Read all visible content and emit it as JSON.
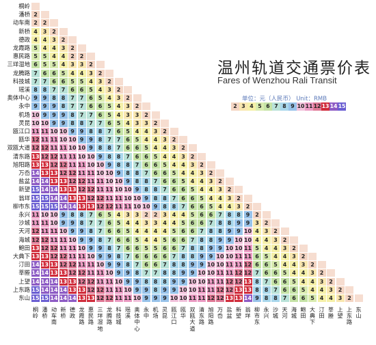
{
  "title_cn": "温州轨道交通票价表",
  "title_en": "Fares of Wenzhou Rali Transit",
  "unit_label": "单位：元（人民币） Unit：RMB",
  "stations": [
    "桐岭",
    "潘桥",
    "动车南",
    "新桥",
    "德政",
    "龙霞路",
    "惠民路",
    "三垟湿地",
    "龙腾路",
    "科技城",
    "瑶溪",
    "奥体中心",
    "永中",
    "机场",
    "灵昆",
    "瓯江口",
    "瓯华",
    "双瓯大道",
    "清东路",
    "旭阳路",
    "万岙",
    "盐盆",
    "新望",
    "翁垟",
    "柳市东",
    "永兴",
    "沙城",
    "天河",
    "海城",
    "鲍田",
    "大典下",
    "汀田",
    "莘塍",
    "上望",
    "上东路",
    "东山"
  ],
  "fares": [
    [],
    [
      2
    ],
    [
      2,
      2
    ],
    [
      4,
      3,
      2
    ],
    [
      4,
      4,
      3,
      2
    ],
    [
      5,
      4,
      4,
      3,
      2
    ],
    [
      5,
      5,
      4,
      4,
      2,
      2
    ],
    [
      6,
      5,
      5,
      4,
      3,
      3,
      2
    ],
    [
      7,
      6,
      6,
      5,
      4,
      4,
      3,
      2
    ],
    [
      7,
      7,
      6,
      6,
      5,
      5,
      4,
      3,
      2
    ],
    [
      8,
      8,
      7,
      7,
      6,
      6,
      5,
      4,
      3,
      2
    ],
    [
      9,
      9,
      8,
      8,
      7,
      7,
      6,
      5,
      4,
      3,
      2
    ],
    [
      9,
      9,
      9,
      8,
      7,
      7,
      6,
      6,
      5,
      4,
      3,
      2
    ],
    [
      10,
      9,
      9,
      9,
      8,
      7,
      7,
      6,
      5,
      4,
      3,
      3,
      2
    ],
    [
      10,
      10,
      9,
      9,
      8,
      8,
      7,
      7,
      6,
      5,
      4,
      3,
      3,
      2
    ],
    [
      11,
      11,
      10,
      10,
      9,
      9,
      8,
      8,
      7,
      6,
      5,
      4,
      4,
      3,
      2
    ],
    [
      12,
      11,
      11,
      10,
      10,
      9,
      9,
      8,
      7,
      7,
      6,
      5,
      4,
      4,
      3,
      2
    ],
    [
      12,
      12,
      11,
      11,
      10,
      10,
      9,
      8,
      8,
      7,
      6,
      6,
      5,
      4,
      4,
      3,
      2
    ],
    [
      13,
      12,
      12,
      11,
      11,
      10,
      10,
      9,
      8,
      8,
      7,
      6,
      6,
      5,
      4,
      4,
      3,
      2
    ],
    [
      13,
      13,
      12,
      12,
      11,
      11,
      10,
      10,
      9,
      8,
      8,
      7,
      6,
      6,
      5,
      4,
      4,
      3,
      2
    ],
    [
      14,
      13,
      13,
      12,
      12,
      11,
      11,
      10,
      10,
      9,
      8,
      8,
      7,
      6,
      6,
      5,
      4,
      4,
      3,
      2
    ],
    [
      14,
      14,
      13,
      13,
      12,
      12,
      11,
      11,
      10,
      10,
      9,
      8,
      8,
      7,
      6,
      6,
      5,
      4,
      4,
      3,
      2
    ],
    [
      15,
      14,
      14,
      13,
      13,
      12,
      12,
      11,
      11,
      10,
      10,
      9,
      8,
      8,
      7,
      6,
      6,
      5,
      4,
      4,
      3,
      2
    ],
    [
      15,
      15,
      14,
      14,
      13,
      13,
      12,
      12,
      11,
      11,
      10,
      10,
      9,
      8,
      8,
      7,
      6,
      6,
      5,
      4,
      4,
      3,
      2
    ],
    [
      15,
      15,
      15,
      14,
      14,
      13,
      13,
      12,
      12,
      11,
      11,
      10,
      10,
      9,
      8,
      8,
      7,
      6,
      6,
      5,
      4,
      4,
      3,
      2
    ],
    [
      11,
      10,
      10,
      9,
      8,
      8,
      7,
      6,
      5,
      4,
      3,
      3,
      2,
      2,
      3,
      4,
      4,
      5,
      6,
      6,
      7,
      8,
      8,
      9,
      2
    ],
    [
      11,
      11,
      10,
      9,
      9,
      8,
      7,
      7,
      6,
      5,
      4,
      4,
      3,
      3,
      4,
      4,
      5,
      6,
      6,
      7,
      8,
      8,
      9,
      9,
      3,
      2
    ],
    [
      12,
      11,
      11,
      10,
      9,
      9,
      8,
      7,
      6,
      6,
      5,
      4,
      4,
      4,
      4,
      5,
      6,
      6,
      7,
      8,
      8,
      9,
      9,
      10,
      4,
      3,
      2
    ],
    [
      12,
      12,
      11,
      11,
      10,
      9,
      9,
      8,
      7,
      6,
      6,
      5,
      4,
      4,
      5,
      6,
      6,
      7,
      8,
      8,
      9,
      9,
      10,
      10,
      4,
      4,
      3,
      2
    ],
    [
      13,
      12,
      12,
      11,
      11,
      10,
      9,
      9,
      8,
      7,
      6,
      6,
      5,
      5,
      6,
      6,
      7,
      8,
      8,
      9,
      9,
      10,
      10,
      11,
      5,
      4,
      4,
      3,
      2
    ],
    [
      13,
      13,
      12,
      12,
      11,
      11,
      10,
      9,
      9,
      8,
      7,
      6,
      6,
      6,
      6,
      7,
      8,
      8,
      9,
      9,
      10,
      10,
      11,
      11,
      6,
      5,
      4,
      4,
      3,
      2
    ],
    [
      14,
      13,
      13,
      12,
      12,
      11,
      11,
      10,
      9,
      9,
      8,
      7,
      6,
      6,
      7,
      8,
      8,
      9,
      9,
      10,
      10,
      11,
      11,
      12,
      6,
      6,
      5,
      4,
      4,
      3,
      2
    ],
    [
      14,
      14,
      13,
      13,
      12,
      12,
      11,
      11,
      10,
      9,
      9,
      8,
      7,
      7,
      8,
      8,
      9,
      9,
      10,
      10,
      11,
      11,
      12,
      12,
      7,
      6,
      6,
      5,
      4,
      4,
      3,
      2
    ],
    [
      14,
      14,
      14,
      13,
      13,
      12,
      12,
      11,
      11,
      10,
      9,
      9,
      8,
      8,
      8,
      9,
      9,
      10,
      10,
      11,
      11,
      12,
      12,
      13,
      8,
      7,
      6,
      6,
      5,
      4,
      4,
      3,
      2
    ],
    [
      15,
      14,
      14,
      14,
      13,
      13,
      12,
      12,
      11,
      11,
      10,
      9,
      9,
      8,
      9,
      9,
      10,
      10,
      11,
      11,
      12,
      12,
      13,
      13,
      8,
      8,
      7,
      6,
      6,
      5,
      4,
      4,
      3,
      2
    ],
    [
      15,
      15,
      14,
      14,
      14,
      13,
      13,
      12,
      12,
      11,
      11,
      10,
      9,
      9,
      9,
      10,
      10,
      11,
      11,
      12,
      12,
      13,
      13,
      14,
      9,
      8,
      8,
      7,
      6,
      6,
      5,
      4,
      4,
      3,
      2
    ]
  ],
  "legend": [
    2,
    3,
    4,
    5,
    6,
    7,
    8,
    9,
    10,
    11,
    12,
    13,
    14,
    15
  ],
  "colors": {
    "2": "#f4d5c3",
    "3": "#f9e7b0",
    "4": "#f5f0a8",
    "5": "#d9ecb0",
    "6": "#c5e3a6",
    "7": "#b9e2d8",
    "8": "#a9d7ec",
    "9": "#98c3ea",
    "10": "#f2c2dc",
    "11": "#ec9cc4",
    "12": "#e07a96",
    "13": "#d02b3a",
    "14": "#8d5bc4",
    "15": "#6a5ed2"
  }
}
